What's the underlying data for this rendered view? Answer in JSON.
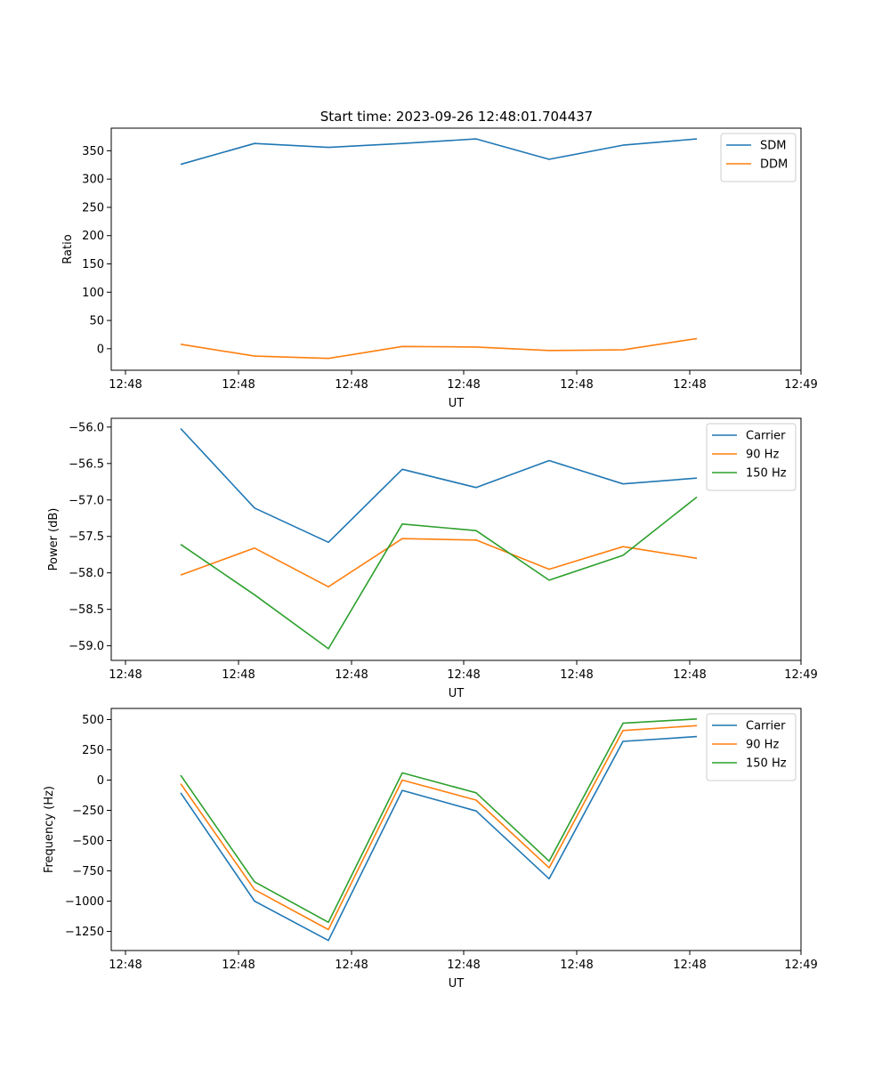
{
  "figure": {
    "title": "Start time: 2023-09-26 12:48:01.704437"
  },
  "chart_data": [
    {
      "type": "line",
      "xlabel": "UT",
      "ylabel": "Ratio",
      "x_tick_labels": [
        "12:48",
        "12:48",
        "12:48",
        "12:48",
        "12:48",
        "12:48",
        "12:49"
      ],
      "y_ticks": [
        0,
        50,
        100,
        150,
        200,
        250,
        300,
        350
      ],
      "y_tick_labels": [
        "0",
        "50",
        "100",
        "150",
        "200",
        "250",
        "300",
        "350"
      ],
      "ylim": [
        -38,
        390
      ],
      "legend_position": "top-right",
      "series": [
        {
          "name": "SDM",
          "color": "#1f77b4",
          "values": [
            326,
            363,
            356,
            363,
            371,
            335,
            360,
            371
          ]
        },
        {
          "name": "DDM",
          "color": "#ff7f0e",
          "values": [
            8,
            -13,
            -17,
            4,
            3,
            -3,
            -2,
            18
          ]
        }
      ]
    },
    {
      "type": "line",
      "xlabel": "UT",
      "ylabel": "Power (dB)",
      "x_tick_labels": [
        "12:48",
        "12:48",
        "12:48",
        "12:48",
        "12:48",
        "12:48",
        "12:49"
      ],
      "y_ticks": [
        -59.0,
        -58.5,
        -58.0,
        -57.5,
        -57.0,
        -56.5,
        -56.0
      ],
      "y_tick_labels": [
        "−59.0",
        "−58.5",
        "−58.0",
        "−57.5",
        "−57.0",
        "−56.5",
        "−56.0"
      ],
      "ylim": [
        -59.2,
        -55.88
      ],
      "legend_position": "top-right",
      "series": [
        {
          "name": "Carrier",
          "color": "#1f77b4",
          "values": [
            -56.02,
            -57.11,
            -57.58,
            -56.58,
            -56.83,
            -56.46,
            -56.78,
            -56.7
          ]
        },
        {
          "name": "90 Hz",
          "color": "#ff7f0e",
          "values": [
            -58.03,
            -57.66,
            -58.19,
            -57.53,
            -57.55,
            -57.95,
            -57.64,
            -57.8
          ]
        },
        {
          "name": "150 Hz",
          "color": "#2ca02c",
          "values": [
            -57.61,
            -58.3,
            -59.04,
            -57.33,
            -57.42,
            -58.1,
            -57.76,
            -56.96
          ]
        }
      ]
    },
    {
      "type": "line",
      "xlabel": "UT",
      "ylabel": "Frequency (Hz)",
      "x_tick_labels": [
        "12:48",
        "12:48",
        "12:48",
        "12:48",
        "12:48",
        "12:48",
        "12:49"
      ],
      "y_ticks": [
        -1250,
        -1000,
        -750,
        -500,
        -250,
        0,
        250,
        500
      ],
      "y_tick_labels": [
        "−1250",
        "−1000",
        "−750",
        "−500",
        "−250",
        "0",
        "250",
        "500"
      ],
      "ylim": [
        -1408,
        592
      ],
      "legend_position": "top-right",
      "series": [
        {
          "name": "Carrier",
          "color": "#1f77b4",
          "values": [
            -105,
            -1000,
            -1325,
            -85,
            -255,
            -815,
            320,
            360
          ]
        },
        {
          "name": "90 Hz",
          "color": "#ff7f0e",
          "values": [
            -30,
            -905,
            -1235,
            0,
            -165,
            -725,
            410,
            450
          ]
        },
        {
          "name": "150 Hz",
          "color": "#2ca02c",
          "values": [
            40,
            -840,
            -1175,
            60,
            -105,
            -670,
            470,
            505
          ]
        }
      ]
    }
  ]
}
